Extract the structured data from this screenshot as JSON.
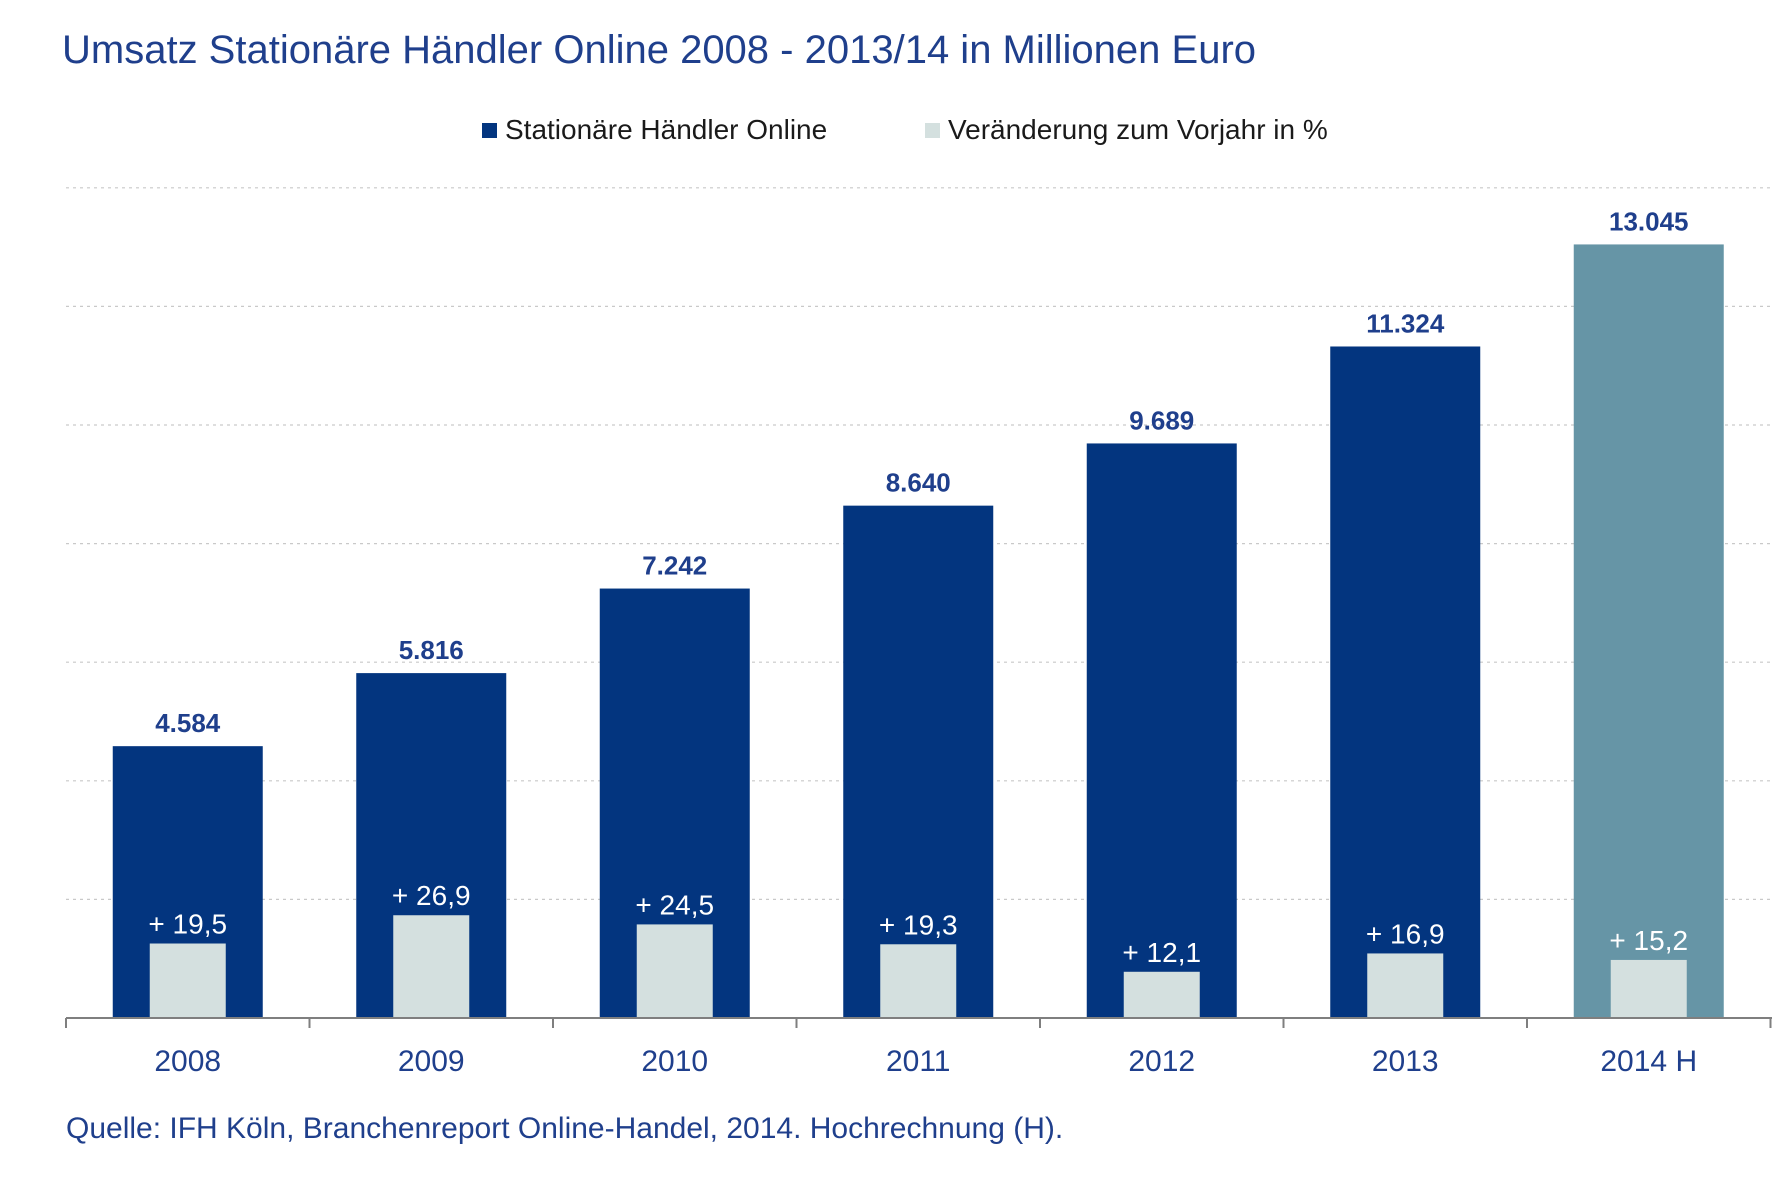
{
  "chart_data": {
    "type": "bar",
    "title": "Umsatz Stationäre Händler Online 2008 - 2013/14 in Millionen Euro",
    "categories": [
      "2008",
      "2009",
      "2010",
      "2011",
      "2012",
      "2013",
      "2014 H"
    ],
    "series": [
      {
        "name": "Stationäre Händler Online",
        "values": [
          4584,
          5816,
          7242,
          8640,
          9689,
          11324,
          13045
        ],
        "labels": [
          "4.584",
          "5.816",
          "7.242",
          "8.640",
          "9.689",
          "11.324",
          "13.045"
        ],
        "color": "#03357f",
        "forecast_color": "#6695a6"
      },
      {
        "name": "Veränderung zum Vorjahr in %",
        "values": [
          19.5,
          26.9,
          24.5,
          19.3,
          12.1,
          16.9,
          15.2
        ],
        "labels": [
          "+ 19,5",
          "+ 26,9",
          "+ 24,5",
          "+ 19,3",
          "+ 12,1",
          "+ 16,9",
          "+ 15,2"
        ],
        "color": "#d4e0df"
      }
    ],
    "forecast_category": "2014 H",
    "ylim": [
      0,
      14000
    ],
    "grid": true,
    "legend_position": "top-center",
    "value_label_color": "#1f3f8c"
  },
  "source": "Quelle: IFH Köln, Branchenreport Online-Handel, 2014. Hochrechnung (H)."
}
